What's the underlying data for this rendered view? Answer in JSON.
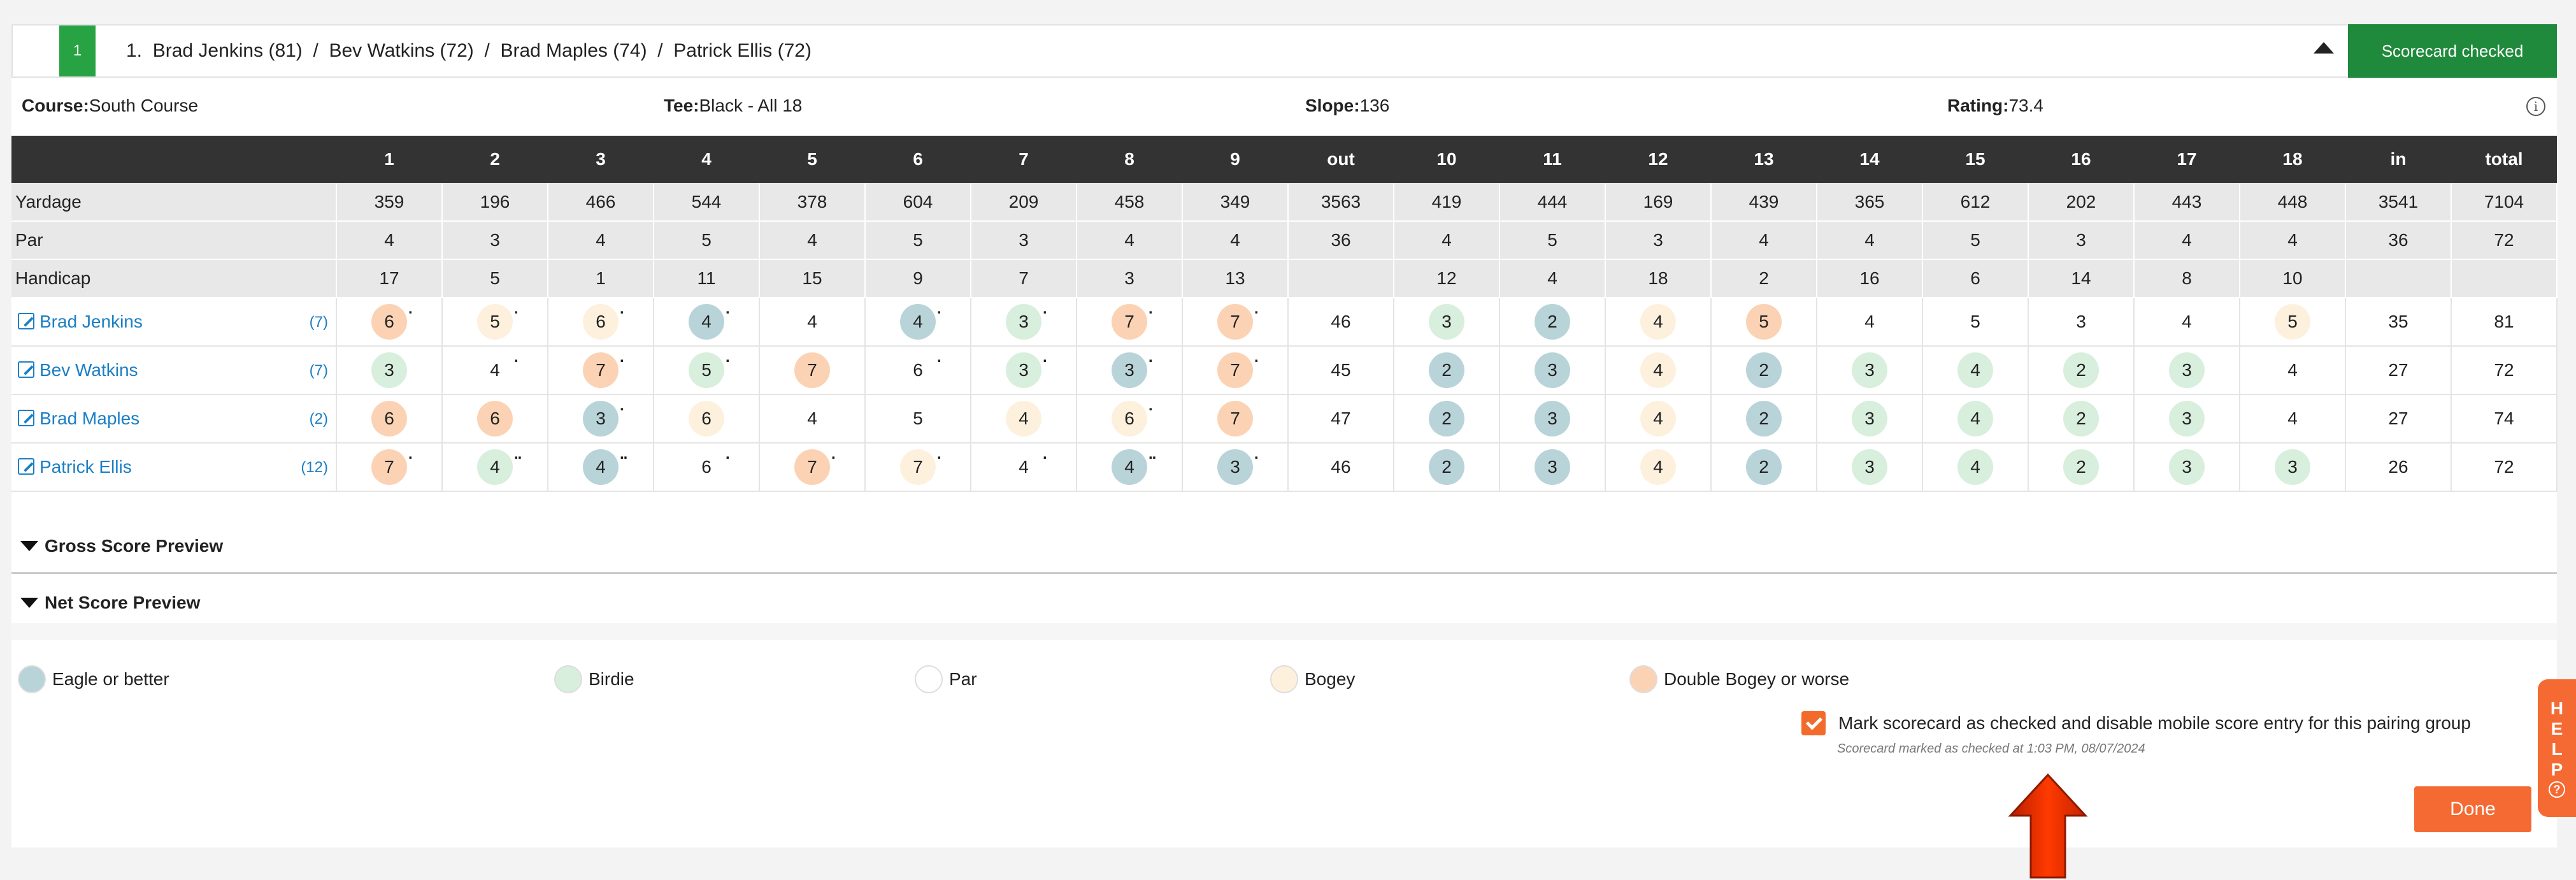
{
  "header": {
    "group_number": "1",
    "players": [
      "1.  Brad Jenkins (81)",
      "Bev Watkins (72)",
      "Brad Maples (74)",
      "Patrick Ellis (72)"
    ],
    "separator": "  /  ",
    "checked_button": "Scorecard checked"
  },
  "info": {
    "course_label": "Course:",
    "course": "South Course",
    "tee_label": "Tee:",
    "tee": "Black - All 18",
    "slope_label": "Slope:",
    "slope": "136",
    "rating_label": "Rating:",
    "rating": "73.4",
    "info_icon": "i"
  },
  "table": {
    "columns": [
      "1",
      "2",
      "3",
      "4",
      "5",
      "6",
      "7",
      "8",
      "9",
      "out",
      "10",
      "11",
      "12",
      "13",
      "14",
      "15",
      "16",
      "17",
      "18",
      "in",
      "total"
    ],
    "yardage_label": "Yardage",
    "yardage": [
      "359",
      "196",
      "466",
      "544",
      "378",
      "604",
      "209",
      "458",
      "349",
      "3563",
      "419",
      "444",
      "169",
      "439",
      "365",
      "612",
      "202",
      "443",
      "448",
      "3541",
      "7104"
    ],
    "par_label": "Par",
    "par": [
      "4",
      "3",
      "4",
      "5",
      "4",
      "5",
      "3",
      "4",
      "4",
      "36",
      "4",
      "5",
      "3",
      "4",
      "4",
      "5",
      "3",
      "4",
      "4",
      "36",
      "72"
    ],
    "handicap_label": "Handicap",
    "handicap": [
      "17",
      "5",
      "1",
      "11",
      "15",
      "9",
      "7",
      "3",
      "13",
      "",
      "12",
      "4",
      "18",
      "2",
      "16",
      "6",
      "14",
      "8",
      "10",
      "",
      ""
    ],
    "players": [
      {
        "name": "Brad Jenkins",
        "handicap": "(7)",
        "scores": [
          {
            "v": "6",
            "t": "double",
            "d": "."
          },
          {
            "v": "5",
            "t": "bogey",
            "d": "."
          },
          {
            "v": "6",
            "t": "bogey",
            "d": "."
          },
          {
            "v": "4",
            "t": "eagle",
            "d": "."
          },
          {
            "v": "4",
            "t": "par",
            "d": ""
          },
          {
            "v": "4",
            "t": "eagle",
            "d": "."
          },
          {
            "v": "3",
            "t": "birdie",
            "d": "."
          },
          {
            "v": "7",
            "t": "double",
            "d": "."
          },
          {
            "v": "7",
            "t": "double",
            "d": "."
          },
          {
            "v": "46",
            "t": "sum",
            "d": ""
          },
          {
            "v": "3",
            "t": "birdie",
            "d": ""
          },
          {
            "v": "2",
            "t": "eagle",
            "d": ""
          },
          {
            "v": "4",
            "t": "bogey",
            "d": ""
          },
          {
            "v": "5",
            "t": "double",
            "d": ""
          },
          {
            "v": "4",
            "t": "par",
            "d": ""
          },
          {
            "v": "5",
            "t": "par",
            "d": ""
          },
          {
            "v": "3",
            "t": "par",
            "d": ""
          },
          {
            "v": "4",
            "t": "par",
            "d": ""
          },
          {
            "v": "5",
            "t": "bogey",
            "d": ""
          },
          {
            "v": "35",
            "t": "sum",
            "d": ""
          },
          {
            "v": "81",
            "t": "sum",
            "d": ""
          }
        ]
      },
      {
        "name": "Bev Watkins",
        "handicap": "(7)",
        "scores": [
          {
            "v": "3",
            "t": "birdie",
            "d": ""
          },
          {
            "v": "4",
            "t": "par",
            "d": "."
          },
          {
            "v": "7",
            "t": "double",
            "d": "."
          },
          {
            "v": "5",
            "t": "birdie",
            "d": "."
          },
          {
            "v": "7",
            "t": "double",
            "d": ""
          },
          {
            "v": "6",
            "t": "par",
            "d": "."
          },
          {
            "v": "3",
            "t": "birdie",
            "d": "."
          },
          {
            "v": "3",
            "t": "eagle",
            "d": "."
          },
          {
            "v": "7",
            "t": "double",
            "d": "."
          },
          {
            "v": "45",
            "t": "sum",
            "d": ""
          },
          {
            "v": "2",
            "t": "eagle",
            "d": ""
          },
          {
            "v": "3",
            "t": "eagle",
            "d": ""
          },
          {
            "v": "4",
            "t": "bogey",
            "d": ""
          },
          {
            "v": "2",
            "t": "eagle",
            "d": ""
          },
          {
            "v": "3",
            "t": "birdie",
            "d": ""
          },
          {
            "v": "4",
            "t": "birdie",
            "d": ""
          },
          {
            "v": "2",
            "t": "birdie",
            "d": ""
          },
          {
            "v": "3",
            "t": "birdie",
            "d": ""
          },
          {
            "v": "4",
            "t": "par",
            "d": ""
          },
          {
            "v": "27",
            "t": "sum",
            "d": ""
          },
          {
            "v": "72",
            "t": "sum",
            "d": ""
          }
        ]
      },
      {
        "name": "Brad Maples",
        "handicap": "(2)",
        "scores": [
          {
            "v": "6",
            "t": "double",
            "d": ""
          },
          {
            "v": "6",
            "t": "double",
            "d": ""
          },
          {
            "v": "3",
            "t": "eagle",
            "d": "."
          },
          {
            "v": "6",
            "t": "bogey",
            "d": ""
          },
          {
            "v": "4",
            "t": "par",
            "d": ""
          },
          {
            "v": "5",
            "t": "par",
            "d": ""
          },
          {
            "v": "4",
            "t": "bogey",
            "d": ""
          },
          {
            "v": "6",
            "t": "bogey",
            "d": "."
          },
          {
            "v": "7",
            "t": "double",
            "d": ""
          },
          {
            "v": "47",
            "t": "sum",
            "d": ""
          },
          {
            "v": "2",
            "t": "eagle",
            "d": ""
          },
          {
            "v": "3",
            "t": "eagle",
            "d": ""
          },
          {
            "v": "4",
            "t": "bogey",
            "d": ""
          },
          {
            "v": "2",
            "t": "eagle",
            "d": ""
          },
          {
            "v": "3",
            "t": "birdie",
            "d": ""
          },
          {
            "v": "4",
            "t": "birdie",
            "d": ""
          },
          {
            "v": "2",
            "t": "birdie",
            "d": ""
          },
          {
            "v": "3",
            "t": "birdie",
            "d": ""
          },
          {
            "v": "4",
            "t": "par",
            "d": ""
          },
          {
            "v": "27",
            "t": "sum",
            "d": ""
          },
          {
            "v": "74",
            "t": "sum",
            "d": ""
          }
        ]
      },
      {
        "name": "Patrick Ellis",
        "handicap": "(12)",
        "scores": [
          {
            "v": "7",
            "t": "double",
            "d": "."
          },
          {
            "v": "4",
            "t": "birdie",
            "d": ".."
          },
          {
            "v": "4",
            "t": "eagle",
            "d": ".."
          },
          {
            "v": "6",
            "t": "par",
            "d": "."
          },
          {
            "v": "7",
            "t": "double",
            "d": "."
          },
          {
            "v": "7",
            "t": "bogey",
            "d": "."
          },
          {
            "v": "4",
            "t": "par",
            "d": "."
          },
          {
            "v": "4",
            "t": "eagle",
            "d": ".."
          },
          {
            "v": "3",
            "t": "eagle",
            "d": "."
          },
          {
            "v": "46",
            "t": "sum",
            "d": ""
          },
          {
            "v": "2",
            "t": "eagle",
            "d": ""
          },
          {
            "v": "3",
            "t": "eagle",
            "d": ""
          },
          {
            "v": "4",
            "t": "bogey",
            "d": ""
          },
          {
            "v": "2",
            "t": "eagle",
            "d": ""
          },
          {
            "v": "3",
            "t": "birdie",
            "d": ""
          },
          {
            "v": "4",
            "t": "birdie",
            "d": ""
          },
          {
            "v": "2",
            "t": "birdie",
            "d": ""
          },
          {
            "v": "3",
            "t": "birdie",
            "d": ""
          },
          {
            "v": "3",
            "t": "birdie",
            "d": ""
          },
          {
            "v": "26",
            "t": "sum",
            "d": ""
          },
          {
            "v": "72",
            "t": "sum",
            "d": ""
          }
        ]
      }
    ]
  },
  "previews": {
    "gross": "Gross Score Preview",
    "net": "Net Score Preview"
  },
  "legend": {
    "eagle": "Eagle or better",
    "birdie": "Birdie",
    "par": "Par",
    "bogey": "Bogey",
    "double": "Double Bogey or worse",
    "colors": {
      "eagle": "#b9d4d9",
      "birdie": "#d7efdc",
      "par": "#ffffff",
      "bogey": "#fdf1de",
      "double": "#fbd3b4"
    }
  },
  "checkbox": {
    "checked": true,
    "label": "Mark scorecard as checked and disable mobile score entry for this pairing group",
    "note": "Scorecard marked as checked at 1:03 PM, 08/07/2024"
  },
  "done_button": "Done",
  "help_tab": {
    "letters": [
      "H",
      "E",
      "L",
      "P"
    ],
    "icon": "?"
  },
  "colors": {
    "accent_green": "#1f8a3b",
    "accent_orange": "#f56a32",
    "link_blue": "#1a7fc4",
    "table_header": "#333333"
  }
}
